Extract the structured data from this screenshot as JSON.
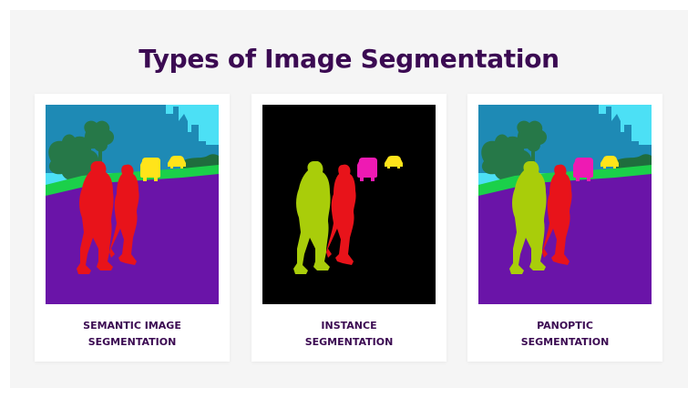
{
  "title": "Types of Image Segmentation",
  "cards": [
    {
      "caption_line1": "SEMANTIC IMAGE",
      "caption_line2": "SEGMENTATION",
      "image_icon": "semantic-segmentation-image"
    },
    {
      "caption_line1": "INSTANCE",
      "caption_line2": "SEGMENTATION",
      "image_icon": "instance-segmentation-image"
    },
    {
      "caption_line1": "PANOPTIC",
      "caption_line2": "SEGMENTATION",
      "image_icon": "panoptic-segmentation-image"
    }
  ],
  "colors": {
    "title": "#3b0a52",
    "sky": "#4ce0f5",
    "buildings": "#1e8ab5",
    "trees": "#267848",
    "grass": "#1bd04a",
    "road": "#6a14a8",
    "person_red": "#e8131a",
    "person_green": "#a9cd0a",
    "vehicle_yellow": "#ffe41a",
    "vehicle_magenta": "#ee1ab3",
    "background_black": "#000000"
  }
}
